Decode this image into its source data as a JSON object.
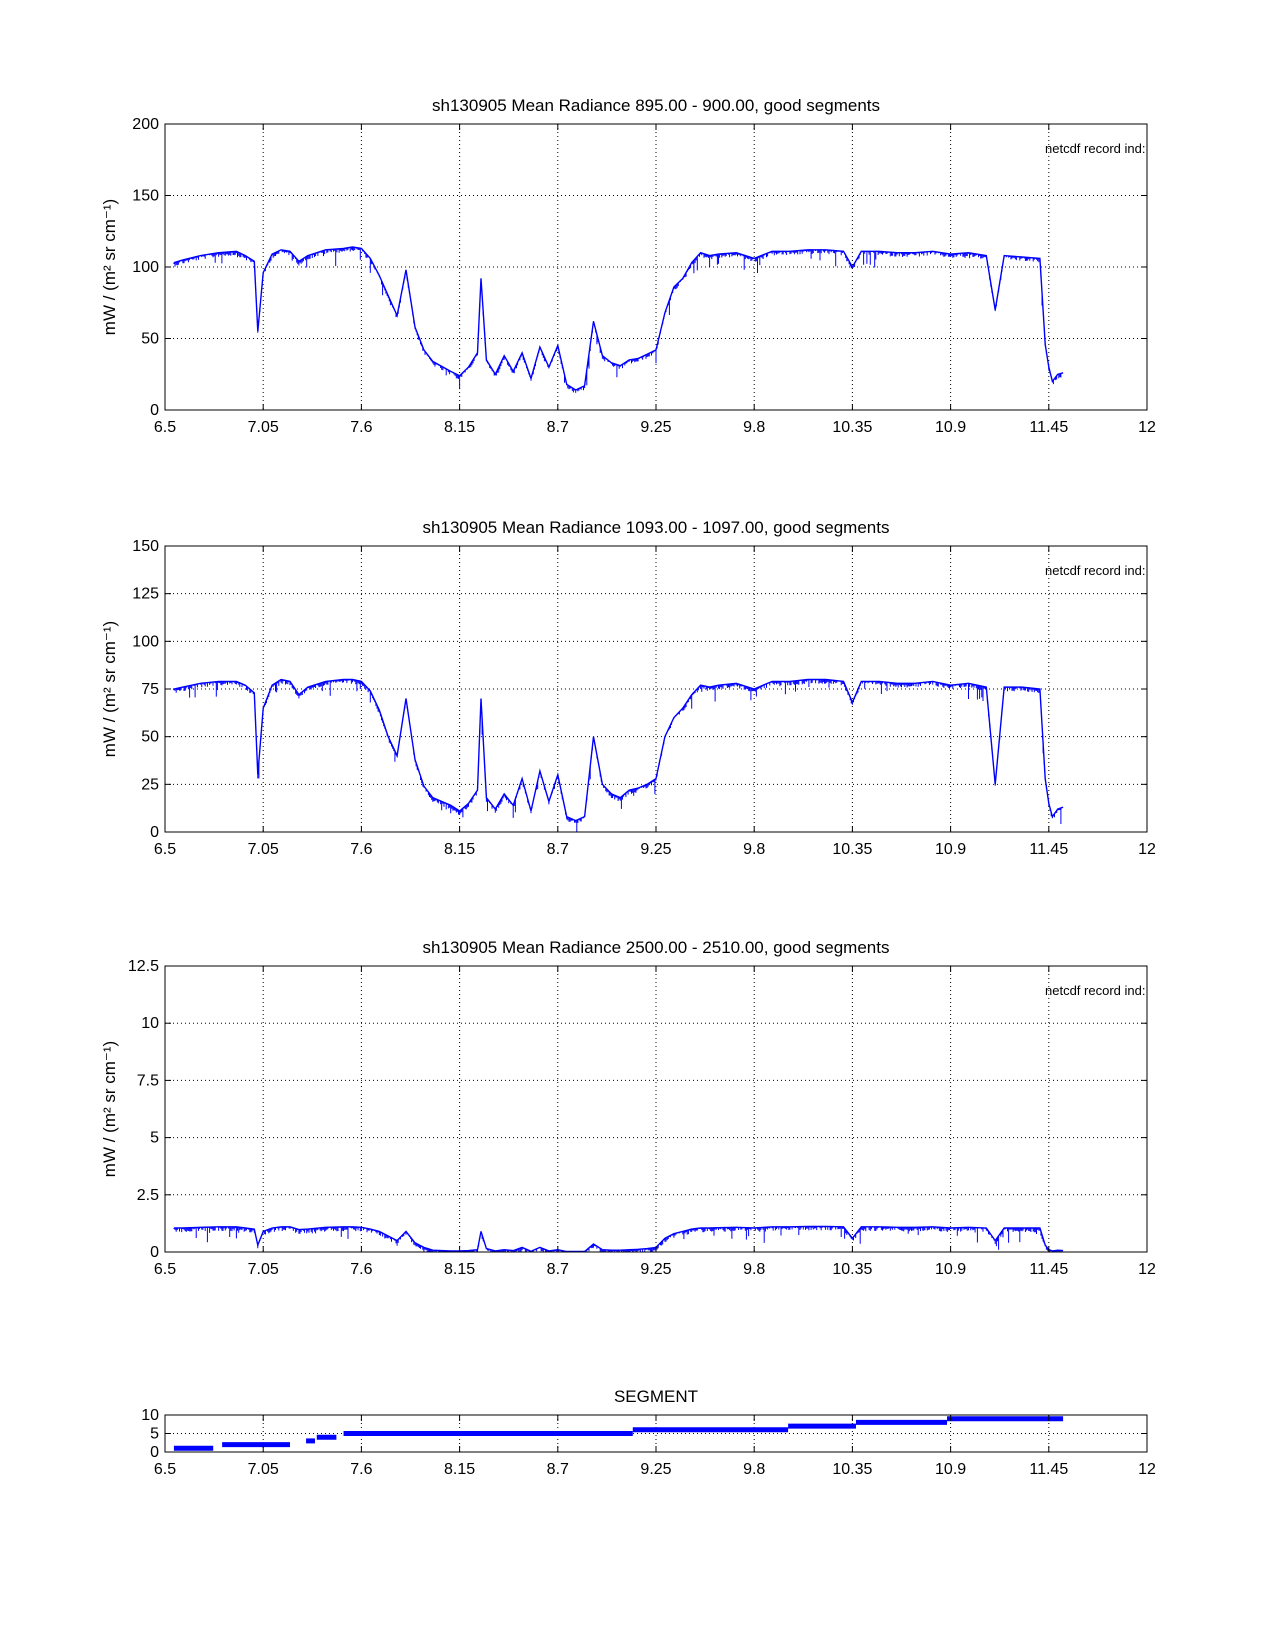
{
  "chart_data": [
    {
      "type": "line",
      "title": "sh130905 Mean Radiance 895.00 - 900.00, good segments",
      "xlabel": "",
      "ylabel": "mW / (m² sr cm⁻¹)",
      "annotation": "netcdf record ind:",
      "xlim": [
        6.5,
        12
      ],
      "ylim": [
        0,
        200
      ],
      "xticks": [
        "6.5",
        "7.05",
        "7.6",
        "8.15",
        "8.7",
        "9.25",
        "9.8",
        "10.35",
        "10.9",
        "11.45",
        "12"
      ],
      "yticks": [
        "0",
        "50",
        "100",
        "150",
        "200"
      ],
      "grid": true,
      "color": "#0000ff",
      "series": [
        {
          "name": "Mean Radiance 895-900",
          "x": [
            6.55,
            6.6,
            6.7,
            6.8,
            6.9,
            6.95,
            7.0,
            7.02,
            7.05,
            7.1,
            7.15,
            7.2,
            7.25,
            7.3,
            7.4,
            7.5,
            7.55,
            7.6,
            7.65,
            7.7,
            7.75,
            7.8,
            7.85,
            7.9,
            7.95,
            8.0,
            8.1,
            8.15,
            8.2,
            8.25,
            8.27,
            8.3,
            8.35,
            8.4,
            8.45,
            8.5,
            8.55,
            8.6,
            8.65,
            8.7,
            8.75,
            8.8,
            8.85,
            8.9,
            8.95,
            9.0,
            9.05,
            9.1,
            9.15,
            9.2,
            9.25,
            9.3,
            9.35,
            9.4,
            9.45,
            9.5,
            9.55,
            9.6,
            9.7,
            9.8,
            9.9,
            10.0,
            10.1,
            10.2,
            10.3,
            10.35,
            10.4,
            10.5,
            10.6,
            10.7,
            10.8,
            10.9,
            11.0,
            11.1,
            11.15,
            11.2,
            11.3,
            11.4,
            11.43,
            11.45,
            11.47,
            11.5,
            11.53
          ],
          "y": [
            103,
            105,
            108,
            110,
            111,
            108,
            104,
            55,
            96,
            109,
            112,
            111,
            104,
            108,
            112,
            113,
            114,
            113,
            106,
            94,
            80,
            66,
            98,
            58,
            42,
            34,
            27,
            24,
            30,
            40,
            92,
            35,
            25,
            38,
            27,
            40,
            22,
            44,
            30,
            45,
            18,
            14,
            17,
            62,
            38,
            33,
            31,
            35,
            36,
            39,
            42,
            68,
            86,
            92,
            103,
            110,
            108,
            109,
            110,
            106,
            111,
            111,
            112,
            112,
            111,
            100,
            111,
            111,
            110,
            110,
            111,
            109,
            110,
            108,
            70,
            108,
            107,
            106,
            46,
            30,
            20,
            25,
            26
          ]
        }
      ]
    },
    {
      "type": "line",
      "title": "sh130905 Mean Radiance 1093.00 - 1097.00, good segments",
      "xlabel": "",
      "ylabel": "mW / (m² sr cm⁻¹)",
      "annotation": "netcdf record ind:",
      "xlim": [
        6.5,
        12
      ],
      "ylim": [
        0,
        150
      ],
      "xticks": [
        "6.5",
        "7.05",
        "7.6",
        "8.15",
        "8.7",
        "9.25",
        "9.8",
        "10.35",
        "10.9",
        "11.45",
        "12"
      ],
      "yticks": [
        "0",
        "25",
        "50",
        "75",
        "100",
        "125",
        "150"
      ],
      "grid": true,
      "color": "#0000ff",
      "series": [
        {
          "name": "Mean Radiance 1093-1097",
          "x": [
            6.55,
            6.6,
            6.7,
            6.8,
            6.9,
            6.95,
            7.0,
            7.02,
            7.05,
            7.1,
            7.15,
            7.2,
            7.25,
            7.3,
            7.4,
            7.5,
            7.55,
            7.6,
            7.65,
            7.7,
            7.75,
            7.8,
            7.85,
            7.9,
            7.95,
            8.0,
            8.1,
            8.15,
            8.2,
            8.25,
            8.27,
            8.3,
            8.35,
            8.4,
            8.45,
            8.5,
            8.55,
            8.6,
            8.65,
            8.7,
            8.75,
            8.8,
            8.85,
            8.9,
            8.95,
            9.0,
            9.05,
            9.1,
            9.15,
            9.2,
            9.25,
            9.3,
            9.35,
            9.4,
            9.45,
            9.5,
            9.55,
            9.6,
            9.7,
            9.8,
            9.9,
            10.0,
            10.1,
            10.2,
            10.3,
            10.35,
            10.4,
            10.5,
            10.6,
            10.7,
            10.8,
            10.9,
            11.0,
            11.1,
            11.15,
            11.2,
            11.3,
            11.4,
            11.43,
            11.45,
            11.47,
            11.5,
            11.53
          ],
          "y": [
            75,
            76,
            78,
            79,
            79,
            77,
            73,
            30,
            65,
            77,
            80,
            79,
            72,
            76,
            79,
            80,
            80,
            79,
            74,
            64,
            50,
            40,
            70,
            38,
            24,
            18,
            14,
            11,
            15,
            22,
            70,
            18,
            12,
            20,
            14,
            28,
            11,
            32,
            16,
            30,
            8,
            6,
            8,
            50,
            25,
            20,
            18,
            22,
            23,
            25,
            28,
            50,
            60,
            65,
            72,
            77,
            76,
            77,
            78,
            75,
            79,
            79,
            80,
            80,
            79,
            68,
            79,
            79,
            78,
            78,
            79,
            77,
            78,
            76,
            25,
            76,
            76,
            75,
            28,
            15,
            8,
            12,
            13
          ]
        }
      ]
    },
    {
      "type": "line",
      "title": "sh130905 Mean Radiance 2500.00 - 2510.00, good segments",
      "xlabel": "",
      "ylabel": "mW / (m² sr cm⁻¹)",
      "annotation": "netcdf record ind:",
      "xlim": [
        6.5,
        12
      ],
      "ylim": [
        0,
        12.5
      ],
      "xticks": [
        "6.5",
        "7.05",
        "7.6",
        "8.15",
        "8.7",
        "9.25",
        "9.8",
        "10.35",
        "10.9",
        "11.45",
        "12"
      ],
      "yticks": [
        "0",
        "2.5",
        "5",
        "7.5",
        "10",
        "12.5"
      ],
      "grid": true,
      "color": "#0000ff",
      "series": [
        {
          "name": "Mean Radiance 2500-2510",
          "x": [
            6.55,
            6.6,
            6.7,
            6.8,
            6.9,
            6.95,
            7.0,
            7.02,
            7.05,
            7.1,
            7.15,
            7.2,
            7.25,
            7.3,
            7.4,
            7.5,
            7.55,
            7.6,
            7.65,
            7.7,
            7.75,
            7.8,
            7.85,
            7.9,
            7.95,
            8.0,
            8.1,
            8.15,
            8.2,
            8.25,
            8.27,
            8.3,
            8.35,
            8.4,
            8.45,
            8.5,
            8.55,
            8.6,
            8.65,
            8.7,
            8.75,
            8.8,
            8.85,
            8.9,
            8.95,
            9.0,
            9.05,
            9.1,
            9.15,
            9.2,
            9.25,
            9.3,
            9.35,
            9.4,
            9.45,
            9.5,
            9.55,
            9.6,
            9.7,
            9.8,
            9.9,
            10.0,
            10.1,
            10.2,
            10.3,
            10.35,
            10.4,
            10.5,
            10.6,
            10.7,
            10.8,
            10.9,
            11.0,
            11.1,
            11.15,
            11.2,
            11.3,
            11.4,
            11.43,
            11.45,
            11.47,
            11.5,
            11.53
          ],
          "y": [
            1.05,
            1.05,
            1.08,
            1.1,
            1.1,
            1.05,
            1.0,
            0.3,
            0.9,
            1.05,
            1.1,
            1.1,
            0.98,
            1.0,
            1.08,
            1.1,
            1.1,
            1.08,
            1.0,
            0.9,
            0.7,
            0.5,
            0.9,
            0.4,
            0.2,
            0.08,
            0.05,
            0.05,
            0.06,
            0.1,
            0.9,
            0.15,
            0.05,
            0.1,
            0.06,
            0.2,
            0.03,
            0.2,
            0.05,
            0.1,
            0.02,
            0.02,
            0.02,
            0.35,
            0.1,
            0.08,
            0.08,
            0.1,
            0.12,
            0.15,
            0.2,
            0.6,
            0.8,
            0.9,
            1.0,
            1.05,
            1.05,
            1.06,
            1.08,
            1.05,
            1.1,
            1.1,
            1.12,
            1.12,
            1.1,
            0.6,
            1.1,
            1.1,
            1.08,
            1.08,
            1.1,
            1.05,
            1.08,
            1.05,
            0.5,
            1.05,
            1.05,
            1.05,
            0.3,
            0.1,
            0.05,
            0.08,
            0.06
          ]
        }
      ]
    },
    {
      "type": "line",
      "title": "SEGMENT",
      "xlabel": "",
      "ylabel": "",
      "xlim": [
        6.5,
        12
      ],
      "ylim": [
        0,
        10
      ],
      "xticks": [
        "6.5",
        "7.05",
        "7.6",
        "8.15",
        "8.7",
        "9.25",
        "9.8",
        "10.35",
        "10.9",
        "11.45",
        "12"
      ],
      "yticks": [
        "0",
        "5",
        "10"
      ],
      "grid": true,
      "color": "#0000ff",
      "series": [
        {
          "name": "segment",
          "segments": [
            {
              "x0": 6.55,
              "x1": 6.77,
              "value": 1
            },
            {
              "x0": 6.82,
              "x1": 7.2,
              "value": 2
            },
            {
              "x0": 7.29,
              "x1": 7.34,
              "value": 3
            },
            {
              "x0": 7.35,
              "x1": 7.46,
              "value": 4
            },
            {
              "x0": 7.5,
              "x1": 9.12,
              "value": 5
            },
            {
              "x0": 9.12,
              "x1": 9.99,
              "value": 6
            },
            {
              "x0": 9.99,
              "x1": 10.37,
              "value": 7
            },
            {
              "x0": 10.37,
              "x1": 10.88,
              "value": 8
            },
            {
              "x0": 10.88,
              "x1": 11.53,
              "value": 9
            }
          ]
        }
      ]
    }
  ]
}
